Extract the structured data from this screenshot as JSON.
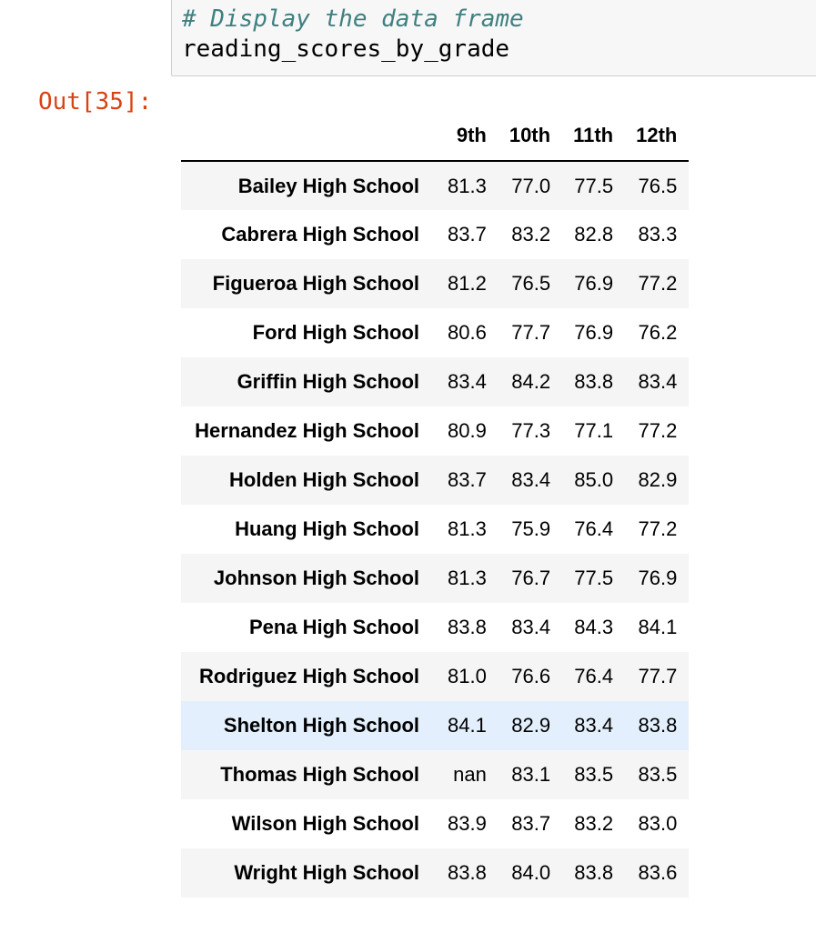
{
  "input_cell": {
    "comment": "# Display the data frame",
    "expression": "reading_scores_by_grade"
  },
  "output": {
    "prompt": "Out[35]:"
  },
  "table": {
    "columns": [
      "9th",
      "10th",
      "11th",
      "12th"
    ],
    "rows": [
      {
        "index": "Bailey High School",
        "values": [
          "81.3",
          "77.0",
          "77.5",
          "76.5"
        ]
      },
      {
        "index": "Cabrera High School",
        "values": [
          "83.7",
          "83.2",
          "82.8",
          "83.3"
        ]
      },
      {
        "index": "Figueroa High School",
        "values": [
          "81.2",
          "76.5",
          "76.9",
          "77.2"
        ]
      },
      {
        "index": "Ford High School",
        "values": [
          "80.6",
          "77.7",
          "76.9",
          "76.2"
        ]
      },
      {
        "index": "Griffin High School",
        "values": [
          "83.4",
          "84.2",
          "83.8",
          "83.4"
        ]
      },
      {
        "index": "Hernandez High School",
        "values": [
          "80.9",
          "77.3",
          "77.1",
          "77.2"
        ]
      },
      {
        "index": "Holden High School",
        "values": [
          "83.7",
          "83.4",
          "85.0",
          "82.9"
        ]
      },
      {
        "index": "Huang High School",
        "values": [
          "81.3",
          "75.9",
          "76.4",
          "77.2"
        ]
      },
      {
        "index": "Johnson High School",
        "values": [
          "81.3",
          "76.7",
          "77.5",
          "76.9"
        ]
      },
      {
        "index": "Pena High School",
        "values": [
          "83.8",
          "83.4",
          "84.3",
          "84.1"
        ]
      },
      {
        "index": "Rodriguez High School",
        "values": [
          "81.0",
          "76.6",
          "76.4",
          "77.7"
        ]
      },
      {
        "index": "Shelton High School",
        "values": [
          "84.1",
          "82.9",
          "83.4",
          "83.8"
        ]
      },
      {
        "index": "Thomas High School",
        "values": [
          "nan",
          "83.1",
          "83.5",
          "83.5"
        ]
      },
      {
        "index": "Wilson High School",
        "values": [
          "83.9",
          "83.7",
          "83.2",
          "83.0"
        ]
      },
      {
        "index": "Wright High School",
        "values": [
          "83.8",
          "84.0",
          "83.8",
          "83.6"
        ]
      }
    ],
    "hovered_row": "Shelton High School"
  },
  "colors": {
    "comment": "#408080",
    "out_prompt": "#d84315",
    "row_stripe": "#f5f5f5",
    "row_hover": "#e3effc",
    "input_background": "#f7f7f7"
  }
}
